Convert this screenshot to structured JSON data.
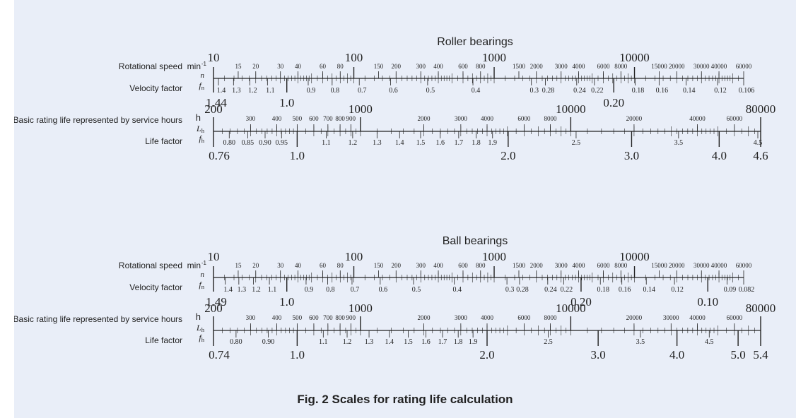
{
  "caption": "Fig. 2  Scales for rating life calculation",
  "labels": {
    "speed": "Rotational speed",
    "speed_unit": "min",
    "speed_exp": "-1",
    "n_symbol": "n",
    "velocity": "Velocity factor",
    "fn_main": "f",
    "fn_sub": "n",
    "life": "Basic rating life represented by service hours",
    "h_unit": "h",
    "lh_main": "L",
    "lh_sub": "h",
    "lifefactor": "Life factor",
    "fh_main": "f",
    "fh_sub": "h"
  },
  "colors": {
    "panel": "#e9eef8",
    "ink": "#222222"
  },
  "sections": [
    {
      "id": "roller",
      "title": "Roller bearings",
      "speed_major": [
        "10",
        "100",
        "1000",
        "10000"
      ],
      "speed_minor": [
        "15",
        "20",
        "30",
        "40",
        "60",
        "80",
        "150",
        "200",
        "300",
        "400",
        "600",
        "800",
        "1500",
        "2000",
        "3000",
        "4000",
        "6000",
        "8000",
        "15000",
        "20000",
        "30000",
        "40000",
        "60000"
      ],
      "fn_major": [
        "1.44",
        "1.0",
        "0.20"
      ],
      "fn_minor": [
        "1.4",
        "1.3",
        "1.2",
        "1.1",
        "0.9",
        "0.8",
        "0.7",
        "0.6",
        "0.5",
        "0.4",
        "0.3",
        "0.28",
        "0.24",
        "0.22",
        "0.18",
        "0.16",
        "0.14",
        "0.12",
        "0.106"
      ],
      "life_major": [
        "200",
        "1000",
        "10000",
        "80000"
      ],
      "life_minor": [
        "300",
        "400",
        "500",
        "600",
        "700",
        "800",
        "900",
        "2000",
        "3000",
        "4000",
        "6000",
        "8000",
        "20000",
        "40000",
        "60000"
      ],
      "fh_major": [
        "0.76",
        "1.0",
        "2.0",
        "3.0",
        "4.0",
        "4.6"
      ],
      "fh_minor": [
        "0.80",
        "0.85",
        "0.90",
        "0.95",
        "1.1",
        "1.2",
        "1.3",
        "1.4",
        "1.5",
        "1.6",
        "1.7",
        "1.8",
        "1.9",
        "2.5",
        "3.5",
        "4.5"
      ]
    },
    {
      "id": "ball",
      "title": "Ball bearings",
      "speed_major": [
        "10",
        "100",
        "1000",
        "10000"
      ],
      "speed_minor": [
        "15",
        "20",
        "30",
        "40",
        "60",
        "80",
        "150",
        "200",
        "300",
        "400",
        "600",
        "800",
        "1500",
        "2000",
        "3000",
        "4000",
        "6000",
        "8000",
        "15000",
        "20000",
        "30000",
        "40000",
        "60000"
      ],
      "fn_major": [
        "1.49",
        "1.0",
        "0.20",
        "0.10"
      ],
      "fn_minor": [
        "1.4",
        "1.3",
        "1.2",
        "1.1",
        "0.9",
        "0.8",
        "0.7",
        "0.6",
        "0.5",
        "0.4",
        "0.3",
        "0.28",
        "0.24",
        "0.22",
        "0.18",
        "0.16",
        "0.14",
        "0.12",
        "0.09",
        "0.082"
      ],
      "life_major": [
        "200",
        "1000",
        "10000",
        "80000"
      ],
      "life_minor": [
        "300",
        "400",
        "500",
        "600",
        "700",
        "800",
        "900",
        "2000",
        "3000",
        "4000",
        "6000",
        "8000",
        "20000",
        "30000",
        "40000",
        "60000"
      ],
      "fh_major": [
        "0.74",
        "1.0",
        "2.0",
        "3.0",
        "4.0",
        "5.0",
        "5.4"
      ],
      "fh_minor": [
        "0.80",
        "0.90",
        "1.1",
        "1.2",
        "1.3",
        "1.4",
        "1.5",
        "1.6",
        "1.7",
        "1.8",
        "1.9",
        "2.5",
        "3.5",
        "4.5"
      ]
    }
  ]
}
